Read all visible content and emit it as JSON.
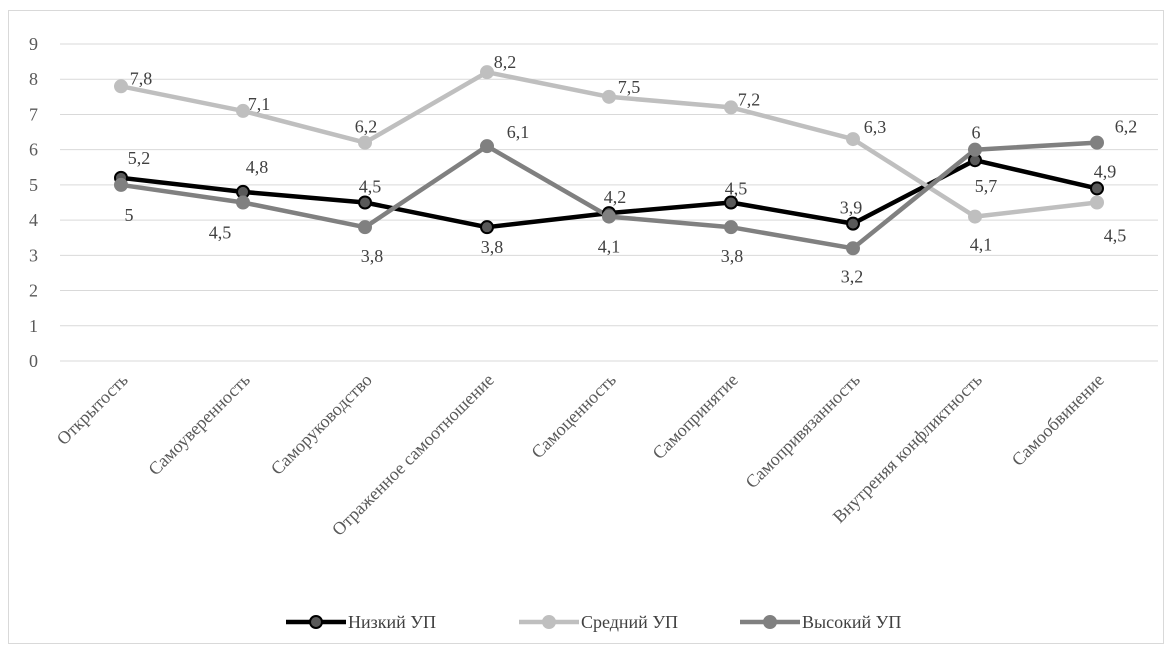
{
  "chart_data": {
    "type": "line",
    "categories": [
      "Открытость",
      "Самоуверенность",
      "Саморуководство",
      "Отраженное самоотношение",
      "Самоценность",
      "Самопринятие",
      "Самопривязанность",
      "Внутреняя конфликтность",
      "Самообвинение"
    ],
    "series": [
      {
        "name": "Низкий УП",
        "values": [
          5.2,
          4.8,
          4.5,
          3.8,
          4.2,
          4.5,
          3.9,
          5.7,
          4.9
        ],
        "color": "#000000",
        "labels": [
          "5,2",
          "4,8",
          "4,5",
          "3,8",
          "4,2",
          "4,5",
          "3,9",
          "5,7",
          "4,9"
        ]
      },
      {
        "name": "Средний УП",
        "values": [
          7.8,
          7.1,
          6.2,
          8.2,
          7.5,
          7.2,
          6.3,
          4.1,
          4.5
        ],
        "color": "#bfbfbf",
        "labels": [
          "7,8",
          "7,1",
          "6,2",
          "8,2",
          "7,5",
          "7,2",
          "6,3",
          "4,1",
          "4,5"
        ]
      },
      {
        "name": "Высокий УП",
        "values": [
          5.0,
          4.5,
          3.8,
          6.1,
          4.1,
          3.8,
          3.2,
          6.0,
          6.2
        ],
        "color": "#808080",
        "labels": [
          "5",
          "4,5",
          "3,8",
          "6,1",
          "4,1",
          "3,8",
          "3,2",
          "6",
          "6,2"
        ]
      }
    ],
    "ylim": [
      0,
      9
    ],
    "yticks": [
      "0",
      "1",
      "2",
      "3",
      "4",
      "5",
      "6",
      "7",
      "8",
      "9"
    ],
    "grid": true,
    "legend": "bottom"
  }
}
